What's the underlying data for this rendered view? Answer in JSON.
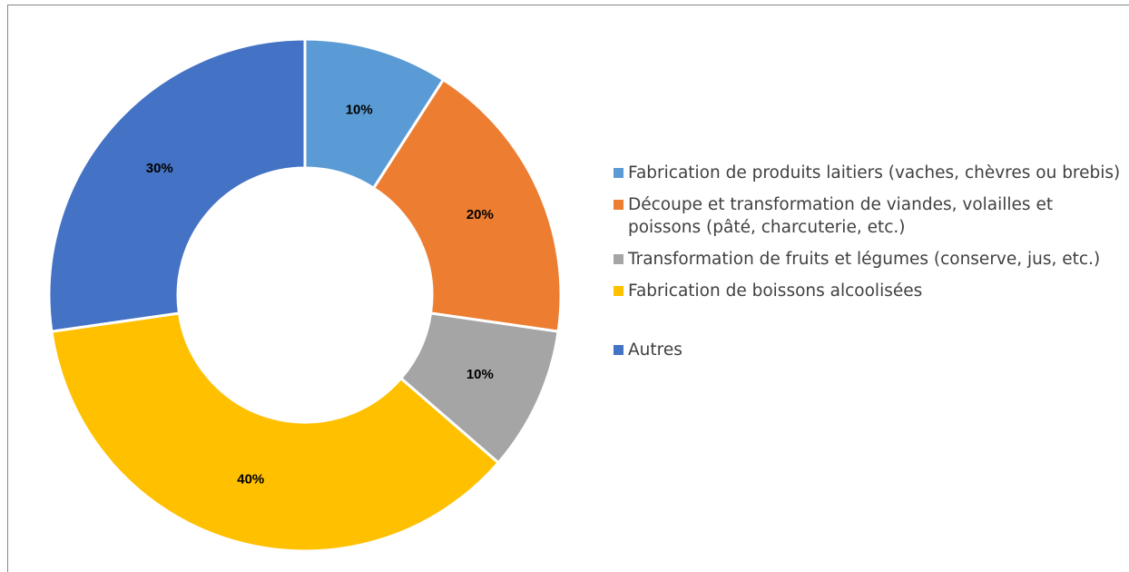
{
  "chart_data": {
    "type": "donut",
    "categories": [
      "Fabrication de produits laitiers (vaches, chèvres ou brebis)",
      "Découpe et transformation de viandes, volailles et poissons (pâté, charcuterie, etc.)",
      "Transformation de fruits et légumes (conserve, jus, etc.)",
      "Fabrication de boissons alcoolisées",
      "Autres"
    ],
    "values": [
      10,
      20,
      10,
      40,
      30
    ],
    "value_labels": [
      "10%",
      "20%",
      "10%",
      "40%",
      "30%"
    ],
    "colors": [
      "#5b9bd5",
      "#ed7d31",
      "#a5a5a5",
      "#ffc000",
      "#4472c4"
    ],
    "legend": "right"
  }
}
